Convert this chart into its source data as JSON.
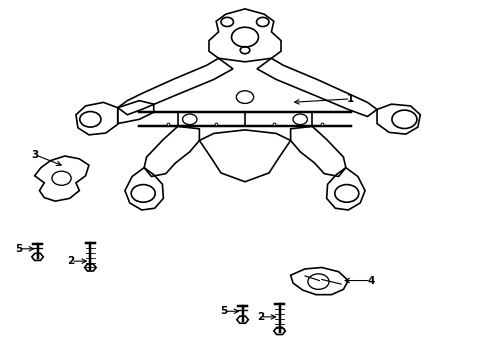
{
  "background_color": "#ffffff",
  "line_color": "#000000",
  "line_width": 1.2,
  "figure_width": 4.9,
  "figure_height": 3.6,
  "dpi": 100
}
